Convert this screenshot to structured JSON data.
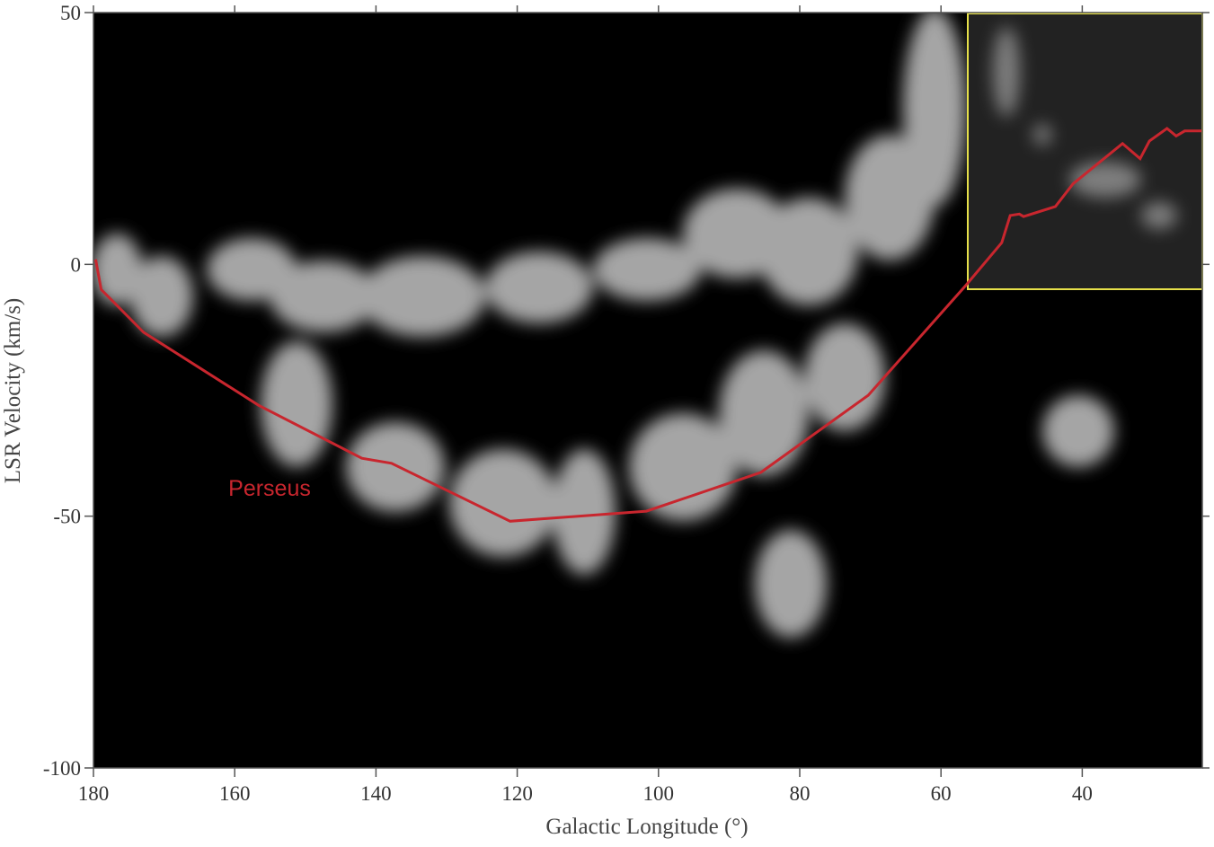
{
  "chart_data": {
    "type": "line",
    "xlabel": "Galactic Longitude (°)",
    "ylabel": "LSR Velocity (km/s)",
    "xlim": [
      180,
      23
    ],
    "ylim": [
      -100,
      50
    ],
    "xticks": [
      180,
      160,
      140,
      120,
      100,
      80,
      60,
      40
    ],
    "yticks": [
      50,
      0,
      -50,
      -100
    ],
    "series": [
      {
        "name": "Perseus",
        "color": "#c8262e",
        "x": [
          179.7,
          178.9,
          172.9,
          156.6,
          142,
          137.8,
          121,
          101.7,
          85.5,
          70.3,
          56.5,
          51.4,
          50.2,
          48.9,
          48.3,
          43.8,
          41.3,
          34.3,
          31.8,
          30.5,
          28,
          26.7,
          25.5,
          23.1
        ],
        "values": [
          1,
          -5,
          -13.5,
          -28,
          -38.5,
          -39.5,
          -51,
          -49,
          -41.3,
          -26,
          -4.2,
          4.3,
          9.7,
          10,
          9.5,
          11.5,
          16,
          24,
          21,
          24.5,
          27,
          25.5,
          26.5,
          26.5
        ]
      }
    ]
  }
}
